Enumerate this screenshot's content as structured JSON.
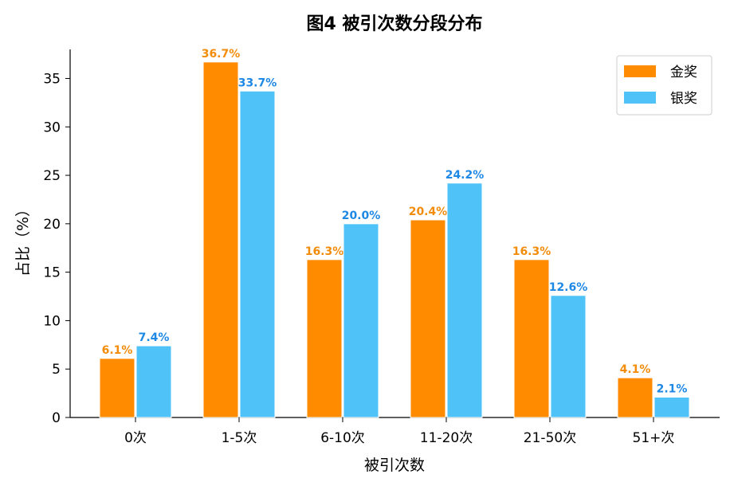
{
  "chart_data": {
    "type": "bar",
    "title": "图4 被引次数分段分布",
    "xlabel": "被引次数",
    "ylabel": "占比（%）",
    "categories": [
      "0次",
      "1-5次",
      "6-10次",
      "11-20次",
      "21-50次",
      "51+次"
    ],
    "series": [
      {
        "name": "金奖",
        "color": "#FF8C00",
        "label_color": "#F28C0A",
        "values": [
          6.1,
          36.7,
          16.3,
          20.4,
          16.3,
          4.1
        ],
        "labels": [
          "6.1%",
          "36.7%",
          "16.3%",
          "20.4%",
          "16.3%",
          "4.1%"
        ]
      },
      {
        "name": "银奖",
        "color": "#4FC3F7",
        "label_color": "#1E88E5",
        "values": [
          7.4,
          33.7,
          20.0,
          24.2,
          12.6,
          2.1
        ],
        "labels": [
          "7.4%",
          "33.7%",
          "20.0%",
          "24.2%",
          "12.6%",
          "2.1%"
        ]
      }
    ],
    "ylim": [
      0,
      38
    ],
    "yticks": [
      0,
      5,
      10,
      15,
      20,
      25,
      30,
      35
    ],
    "grid": false,
    "legend_position": "top-right"
  }
}
